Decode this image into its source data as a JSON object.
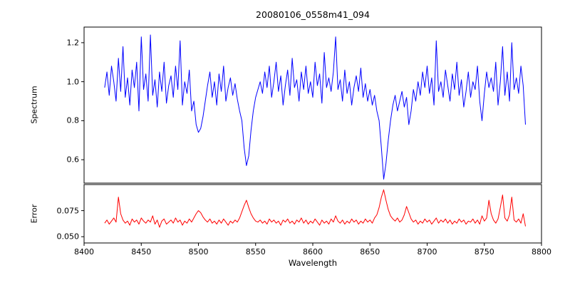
{
  "colors": {
    "background": "#ffffff",
    "axis": "#000000",
    "text": "#000000"
  },
  "chart_data": [
    {
      "type": "line",
      "name": "spectrum",
      "title": "20080106_0558m41_094",
      "ylabel": "Spectrum",
      "color": "#0000ff",
      "xlim": [
        8400,
        8800
      ],
      "ylim": [
        0.48,
        1.28
      ],
      "yticks": [
        0.6,
        0.8,
        1.0,
        1.2
      ],
      "ytick_labels": [
        "0.6",
        "0.8",
        "1.0",
        "1.2"
      ],
      "x_start": 8418,
      "x_step": 2,
      "values": [
        0.97,
        1.05,
        0.93,
        1.08,
        1.0,
        0.9,
        1.12,
        0.95,
        1.18,
        0.92,
        1.02,
        0.88,
        1.06,
        0.97,
        1.1,
        0.85,
        1.23,
        0.96,
        1.04,
        0.9,
        1.24,
        0.93,
        1.01,
        0.87,
        1.05,
        0.95,
        1.1,
        0.89,
        0.98,
        1.03,
        0.92,
        1.08,
        0.96,
        1.21,
        0.88,
        1.0,
        0.94,
        1.06,
        0.85,
        0.9,
        0.78,
        0.74,
        0.76,
        0.82,
        0.9,
        0.98,
        1.05,
        0.92,
        1.0,
        0.88,
        1.04,
        0.95,
        1.08,
        0.9,
        0.97,
        1.02,
        0.93,
        0.99,
        0.91,
        0.85,
        0.8,
        0.66,
        0.57,
        0.62,
        0.75,
        0.85,
        0.92,
        0.96,
        1.0,
        0.94,
        1.05,
        0.97,
        1.08,
        0.92,
        1.0,
        1.1,
        0.95,
        1.03,
        0.88,
        0.98,
        1.06,
        0.93,
        1.12,
        0.97,
        1.01,
        0.9,
        1.05,
        0.96,
        1.08,
        0.94,
        1.0,
        0.92,
        1.1,
        0.98,
        1.04,
        0.89,
        1.15,
        0.97,
        1.02,
        0.95,
        1.05,
        1.23,
        0.96,
        1.01,
        0.9,
        1.06,
        0.94,
        1.0,
        0.88,
        0.97,
        1.03,
        0.95,
        1.07,
        0.92,
        0.99,
        0.9,
        0.96,
        0.88,
        0.93,
        0.85,
        0.8,
        0.66,
        0.5,
        0.58,
        0.7,
        0.8,
        0.88,
        0.93,
        0.85,
        0.9,
        0.95,
        0.87,
        0.92,
        0.78,
        0.85,
        0.96,
        0.9,
        1.0,
        0.93,
        1.05,
        0.97,
        1.08,
        0.94,
        1.02,
        0.88,
        1.21,
        0.95,
        1.0,
        0.92,
        1.06,
        0.98,
        0.9,
        1.04,
        0.96,
        1.1,
        0.93,
        1.01,
        0.87,
        0.95,
        1.05,
        0.92,
        1.0,
        0.96,
        1.08,
        0.9,
        0.8,
        0.94,
        1.05,
        0.97,
        1.02,
        0.95,
        1.1,
        0.88,
        1.0,
        1.18,
        0.93,
        1.05,
        0.9,
        1.2,
        0.96,
        1.02,
        0.94,
        1.08,
        0.98,
        0.78
      ]
    },
    {
      "type": "line",
      "name": "error",
      "ylabel": "Error",
      "xlabel": "Wavelength",
      "color": "#ff0000",
      "xlim": [
        8400,
        8800
      ],
      "ylim": [
        0.044,
        0.1
      ],
      "yticks": [
        0.05,
        0.075
      ],
      "ytick_labels": [
        "0.050",
        "0.075"
      ],
      "xticks": [
        8400,
        8450,
        8500,
        8550,
        8600,
        8650,
        8700,
        8750,
        8800
      ],
      "xtick_labels": [
        "8400",
        "8450",
        "8500",
        "8550",
        "8600",
        "8650",
        "8700",
        "8750",
        "8800"
      ],
      "x_start": 8418,
      "x_step": 2,
      "values": [
        0.063,
        0.066,
        0.062,
        0.065,
        0.068,
        0.064,
        0.088,
        0.072,
        0.066,
        0.063,
        0.065,
        0.061,
        0.067,
        0.064,
        0.066,
        0.062,
        0.068,
        0.065,
        0.063,
        0.066,
        0.064,
        0.07,
        0.062,
        0.066,
        0.059,
        0.065,
        0.067,
        0.062,
        0.064,
        0.066,
        0.063,
        0.068,
        0.064,
        0.066,
        0.061,
        0.065,
        0.063,
        0.067,
        0.064,
        0.068,
        0.072,
        0.075,
        0.073,
        0.069,
        0.066,
        0.064,
        0.067,
        0.063,
        0.065,
        0.062,
        0.066,
        0.063,
        0.067,
        0.064,
        0.061,
        0.065,
        0.063,
        0.066,
        0.064,
        0.068,
        0.074,
        0.08,
        0.085,
        0.078,
        0.072,
        0.068,
        0.065,
        0.064,
        0.066,
        0.063,
        0.065,
        0.062,
        0.067,
        0.064,
        0.066,
        0.063,
        0.065,
        0.061,
        0.066,
        0.064,
        0.067,
        0.063,
        0.065,
        0.062,
        0.066,
        0.064,
        0.068,
        0.063,
        0.066,
        0.062,
        0.065,
        0.063,
        0.067,
        0.064,
        0.061,
        0.066,
        0.063,
        0.065,
        0.062,
        0.067,
        0.064,
        0.07,
        0.065,
        0.063,
        0.066,
        0.062,
        0.065,
        0.063,
        0.067,
        0.064,
        0.066,
        0.062,
        0.065,
        0.063,
        0.067,
        0.064,
        0.066,
        0.063,
        0.068,
        0.071,
        0.078,
        0.088,
        0.095,
        0.085,
        0.076,
        0.07,
        0.067,
        0.065,
        0.068,
        0.064,
        0.066,
        0.071,
        0.079,
        0.073,
        0.067,
        0.064,
        0.066,
        0.062,
        0.065,
        0.063,
        0.067,
        0.064,
        0.066,
        0.062,
        0.065,
        0.068,
        0.063,
        0.066,
        0.064,
        0.067,
        0.063,
        0.066,
        0.062,
        0.065,
        0.063,
        0.067,
        0.064,
        0.066,
        0.062,
        0.065,
        0.064,
        0.067,
        0.063,
        0.066,
        0.062,
        0.07,
        0.065,
        0.068,
        0.085,
        0.072,
        0.066,
        0.063,
        0.067,
        0.078,
        0.09,
        0.068,
        0.065,
        0.071,
        0.088,
        0.066,
        0.064,
        0.067,
        0.063,
        0.072,
        0.06
      ]
    }
  ]
}
